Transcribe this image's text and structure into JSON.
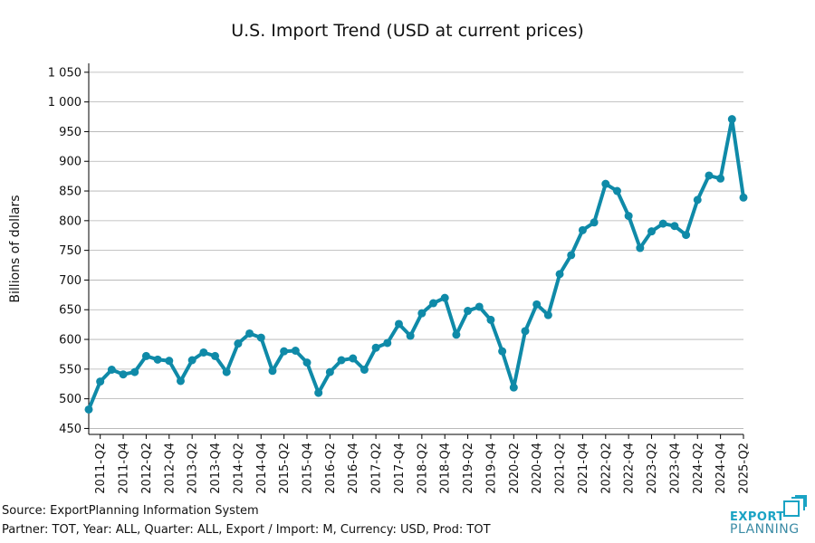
{
  "colors": {
    "line": "#0f8aa8",
    "grid": "#b0b0b0",
    "axis": "#000000",
    "logo": "#1aa3c4",
    "logo_text2": "#3b8ba5"
  },
  "footer": {
    "source": "Source: ExportPlanning Information System",
    "partner": "Partner: TOT, Year: ALL, Quarter: ALL, Export / Import: M, Currency: USD, Prod: TOT"
  },
  "logo": {
    "word1": "EXPORT",
    "word2": "PLANNING"
  },
  "chart_data": {
    "type": "line",
    "title": "U.S. Import Trend (USD at current prices)",
    "xlabel": "",
    "ylabel": "Billions of dollars",
    "ylim": [
      440,
      1065
    ],
    "yticks": [
      450,
      500,
      550,
      600,
      650,
      700,
      750,
      800,
      850,
      900,
      950,
      1000,
      1050
    ],
    "ytick_labels": [
      "450",
      "500",
      "550",
      "600",
      "650",
      "700",
      "750",
      "800",
      "850",
      "900",
      "950",
      "1 000",
      "1 050"
    ],
    "grid": "horizontal",
    "x_tick_labels": [
      "2011-Q2",
      "2011-Q4",
      "2012-Q2",
      "2012-Q4",
      "2013-Q2",
      "2013-Q4",
      "2014-Q2",
      "2014-Q4",
      "2015-Q2",
      "2015-Q4",
      "2016-Q2",
      "2016-Q4",
      "2017-Q2",
      "2017-Q4",
      "2018-Q2",
      "2018-Q4",
      "2019-Q2",
      "2019-Q4",
      "2020-Q2",
      "2020-Q4",
      "2021-Q2",
      "2021-Q4",
      "2022-Q2",
      "2022-Q4",
      "2023-Q2",
      "2023-Q4",
      "2024-Q2",
      "2024-Q4",
      "2025-Q2"
    ],
    "x": [
      "2011-Q1",
      "2011-Q2",
      "2011-Q3",
      "2011-Q4",
      "2012-Q1",
      "2012-Q2",
      "2012-Q3",
      "2012-Q4",
      "2013-Q1",
      "2013-Q2",
      "2013-Q3",
      "2013-Q4",
      "2014-Q1",
      "2014-Q2",
      "2014-Q3",
      "2014-Q4",
      "2015-Q1",
      "2015-Q2",
      "2015-Q3",
      "2015-Q4",
      "2016-Q1",
      "2016-Q2",
      "2016-Q3",
      "2016-Q4",
      "2017-Q1",
      "2017-Q2",
      "2017-Q3",
      "2017-Q4",
      "2018-Q1",
      "2018-Q2",
      "2018-Q3",
      "2018-Q4",
      "2019-Q1",
      "2019-Q2",
      "2019-Q3",
      "2019-Q4",
      "2020-Q1",
      "2020-Q2",
      "2020-Q3",
      "2020-Q4",
      "2021-Q1",
      "2021-Q2",
      "2021-Q3",
      "2021-Q4",
      "2022-Q1",
      "2022-Q2",
      "2022-Q3",
      "2022-Q4",
      "2023-Q1",
      "2023-Q2",
      "2023-Q3",
      "2023-Q4",
      "2024-Q1",
      "2024-Q2",
      "2024-Q3",
      "2024-Q4",
      "2025-Q1",
      "2025-Q2"
    ],
    "series": [
      {
        "name": "",
        "values": [
          482,
          529,
          549,
          541,
          545,
          572,
          566,
          564,
          530,
          565,
          578,
          572,
          545,
          593,
          610,
          603,
          547,
          580,
          581,
          561,
          510,
          545,
          565,
          568,
          549,
          586,
          594,
          626,
          606,
          644,
          661,
          670,
          608,
          648,
          655,
          633,
          580,
          519,
          614,
          659,
          641,
          710,
          742,
          784,
          797,
          862,
          850,
          808,
          754,
          782,
          795,
          791,
          776,
          835,
          876,
          871,
          971,
          839
        ]
      }
    ]
  }
}
